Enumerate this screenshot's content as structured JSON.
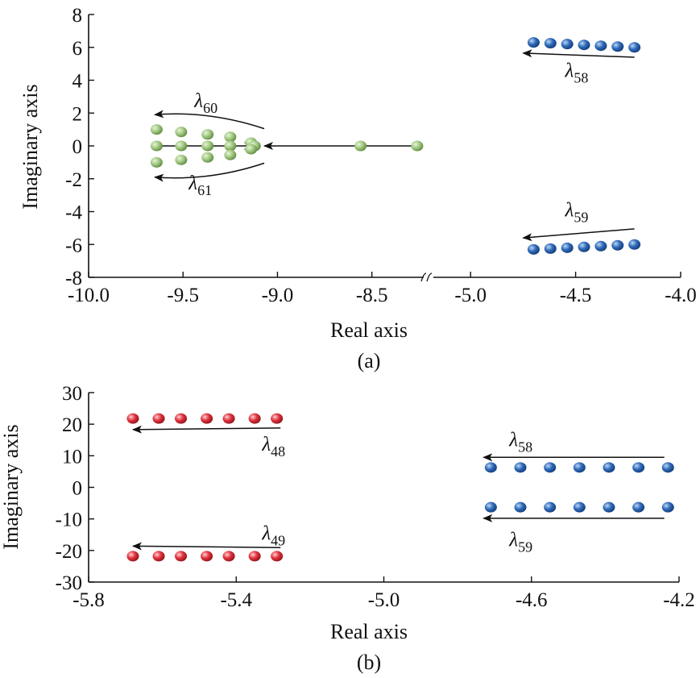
{
  "chart_data": [
    {
      "type": "scatter",
      "panel_label": "(a)",
      "xlabel": "Real axis",
      "ylabel": "Imaginary axis",
      "ylim": [
        -8,
        8
      ],
      "yticks": [
        8,
        6,
        4,
        2,
        0,
        -2,
        -4,
        -6,
        -8
      ],
      "x_break": {
        "left_segment": [
          -10.0,
          -8.2
        ],
        "right_segment": [
          -5.2,
          -4.0
        ]
      },
      "xticks": [
        "-10.0",
        "-9.5",
        "-9.0",
        "-8.5",
        "-5.0",
        "-4.5",
        "-4.0"
      ],
      "colors": {
        "green": "#9cc47c",
        "blue": "#2f6ab8"
      },
      "series": [
        {
          "color": "green",
          "points": [
            [
              -9.64,
              1.0
            ],
            [
              -9.51,
              0.85
            ],
            [
              -9.37,
              0.7
            ],
            [
              -9.25,
              0.55
            ],
            [
              -9.14,
              0.2
            ],
            [
              -9.64,
              0.0
            ],
            [
              -9.51,
              0.0
            ],
            [
              -9.37,
              0.0
            ],
            [
              -9.25,
              0.0
            ],
            [
              -9.12,
              0.0
            ],
            [
              -8.56,
              0.0
            ],
            [
              -8.26,
              0.0
            ],
            [
              -9.64,
              -1.0
            ],
            [
              -9.51,
              -0.85
            ],
            [
              -9.37,
              -0.7
            ],
            [
              -9.25,
              -0.55
            ],
            [
              -9.14,
              -0.2
            ]
          ]
        },
        {
          "color": "blue",
          "points": [
            [
              -4.7,
              6.3
            ],
            [
              -4.62,
              6.25
            ],
            [
              -4.54,
              6.2
            ],
            [
              -4.46,
              6.15
            ],
            [
              -4.38,
              6.1
            ],
            [
              -4.3,
              6.05
            ],
            [
              -4.22,
              6.0
            ],
            [
              -4.7,
              -6.3
            ],
            [
              -4.62,
              -6.25
            ],
            [
              -4.54,
              -6.2
            ],
            [
              -4.46,
              -6.15
            ],
            [
              -4.38,
              -6.1
            ],
            [
              -4.3,
              -6.05
            ],
            [
              -4.22,
              -6.0
            ]
          ]
        }
      ],
      "annotations": [
        {
          "symbol": "λ",
          "sub": "60",
          "at": [
            -9.44,
            2.35
          ],
          "arrow": {
            "from": [
              -9.07,
              1.05
            ],
            "to": [
              -9.65,
              1.9
            ],
            "curve": 0.35
          }
        },
        {
          "symbol": "λ",
          "sub": "61",
          "at": [
            -9.47,
            -2.65
          ],
          "arrow": {
            "from": [
              -9.07,
              -1.05
            ],
            "to": [
              -9.65,
              -1.9
            ],
            "curve": -0.35
          }
        },
        {
          "symbol": "λ",
          "sub": "58",
          "at": [
            -4.55,
            4.2
          ],
          "arrow": {
            "from": [
              -4.22,
              5.4
            ],
            "to": [
              -4.75,
              5.65
            ],
            "curve": 0
          }
        },
        {
          "symbol": "λ",
          "sub": "59",
          "at": [
            -4.55,
            -4.3
          ],
          "arrow": {
            "from": [
              -4.22,
              -5.05
            ],
            "to": [
              -4.75,
              -5.6
            ],
            "curve": 0
          }
        },
        {
          "symbol": "",
          "sub": "",
          "at": [
            0,
            0
          ],
          "arrow": {
            "from": [
              -8.26,
              0.0
            ],
            "to": [
              -9.07,
              0.0
            ],
            "curve": 0
          }
        },
        {
          "symbol": "",
          "sub": "",
          "at": [
            0,
            0
          ],
          "arrow": {
            "from": [
              -9.64,
              0.0
            ],
            "to": [
              -9.13,
              0.0
            ],
            "curve": 0
          }
        }
      ]
    },
    {
      "type": "scatter",
      "panel_label": "(b)",
      "xlabel": "Real axis",
      "ylabel": "Imaginary axis",
      "xlim": [
        -5.8,
        -4.2
      ],
      "ylim": [
        -30,
        30
      ],
      "xticks": [
        "-5.8",
        "-5.4",
        "-5.0",
        "-4.6",
        "-4.2"
      ],
      "yticks": [
        "30",
        "20",
        "10",
        "0",
        "-10",
        "-20",
        "-30"
      ],
      "colors": {
        "red": "#e0323c",
        "blue": "#2f6ab8"
      },
      "series": [
        {
          "color": "red",
          "points": [
            [
              -5.68,
              21.8
            ],
            [
              -5.61,
              21.8
            ],
            [
              -5.55,
              21.8
            ],
            [
              -5.48,
              21.8
            ],
            [
              -5.42,
              21.8
            ],
            [
              -5.35,
              21.8
            ],
            [
              -5.29,
              21.8
            ],
            [
              -5.68,
              -21.8
            ],
            [
              -5.61,
              -21.8
            ],
            [
              -5.55,
              -21.8
            ],
            [
              -5.48,
              -21.8
            ],
            [
              -5.42,
              -21.8
            ],
            [
              -5.35,
              -21.8
            ],
            [
              -5.29,
              -21.8
            ]
          ]
        },
        {
          "color": "blue",
          "points": [
            [
              -4.71,
              6.3
            ],
            [
              -4.63,
              6.3
            ],
            [
              -4.55,
              6.3
            ],
            [
              -4.47,
              6.3
            ],
            [
              -4.39,
              6.3
            ],
            [
              -4.31,
              6.3
            ],
            [
              -4.23,
              6.3
            ],
            [
              -4.71,
              -6.3
            ],
            [
              -4.63,
              -6.3
            ],
            [
              -4.55,
              -6.3
            ],
            [
              -4.47,
              -6.3
            ],
            [
              -4.39,
              -6.3
            ],
            [
              -4.31,
              -6.3
            ],
            [
              -4.23,
              -6.3
            ]
          ]
        }
      ],
      "annotations": [
        {
          "symbol": "λ",
          "sub": "48",
          "at": [
            -5.33,
            11.6
          ],
          "arrow": {
            "from": [
              -5.28,
              18.8
            ],
            "to": [
              -5.68,
              18.3
            ],
            "curve": 0
          }
        },
        {
          "symbol": "λ",
          "sub": "49",
          "at": [
            -5.33,
            -16.6
          ],
          "arrow": {
            "from": [
              -5.28,
              -19.1
            ],
            "to": [
              -5.68,
              -18.6
            ],
            "curve": 0
          }
        },
        {
          "symbol": "λ",
          "sub": "58",
          "at": [
            -4.66,
            13.0
          ],
          "arrow": {
            "from": [
              -4.24,
              9.5
            ],
            "to": [
              -4.73,
              9.5
            ],
            "curve": 0
          }
        },
        {
          "symbol": "λ",
          "sub": "59",
          "at": [
            -4.66,
            -18.7
          ],
          "arrow": {
            "from": [
              -4.24,
              -9.8
            ],
            "to": [
              -4.73,
              -9.8
            ],
            "curve": 0
          }
        }
      ]
    }
  ]
}
